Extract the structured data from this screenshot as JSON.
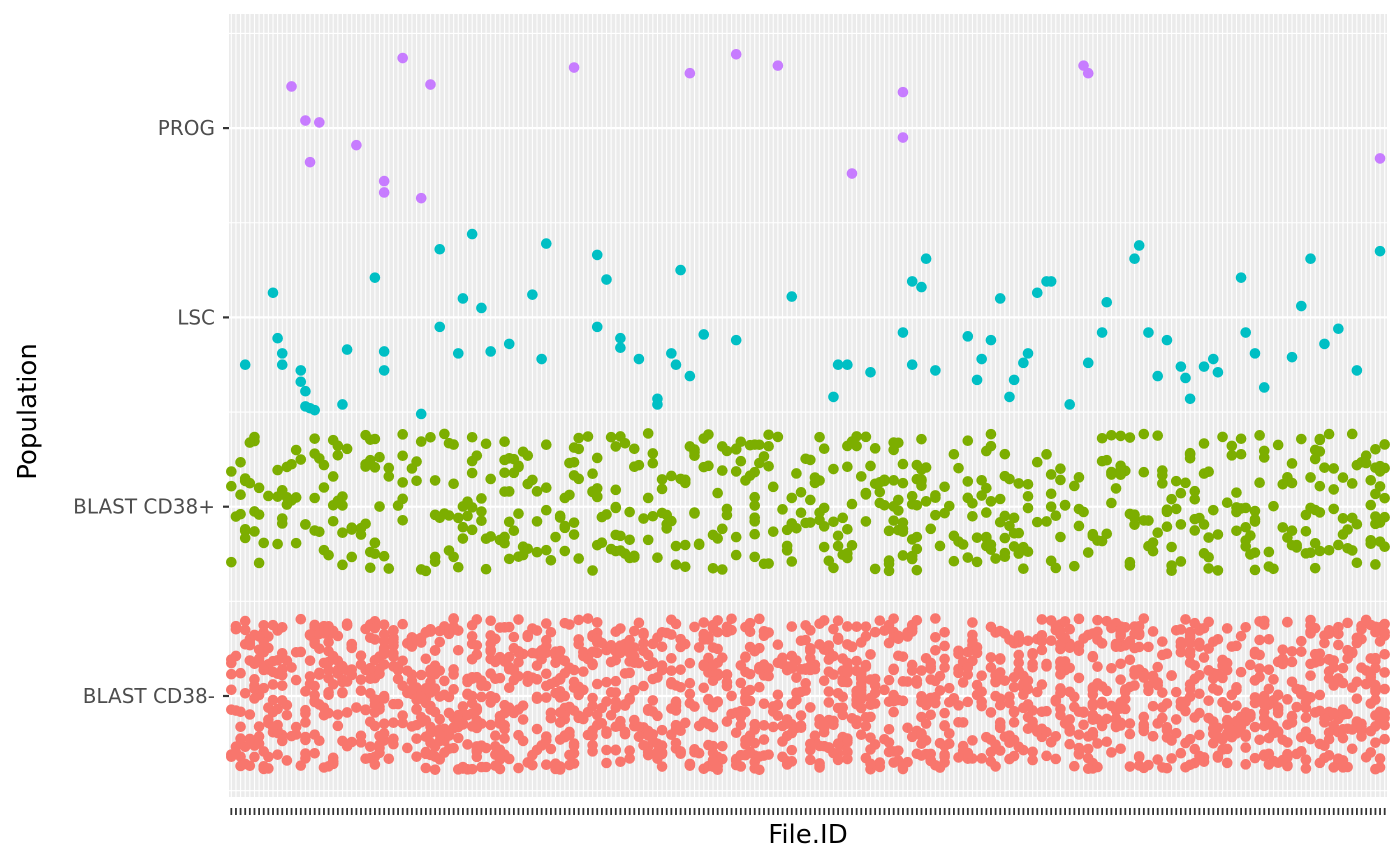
{
  "chart_data": {
    "type": "scatter",
    "title": "",
    "xlabel": "File.ID",
    "ylabel": "Population",
    "x_tick_labels_shown": false,
    "x_category_count": 250,
    "categories": [
      "BLAST CD38-",
      "BLAST CD38+",
      "LSC",
      "PROG"
    ],
    "jitter_height": 0.4,
    "grid": true,
    "legend": "none",
    "background": "#EBEBEB",
    "series": [
      {
        "name": "PROG",
        "color": "#C77CFF",
        "points": [
          {
            "x": 13,
            "y": 3.22
          },
          {
            "x": 16,
            "y": 3.04
          },
          {
            "x": 17,
            "y": 2.82
          },
          {
            "x": 19,
            "y": 3.03
          },
          {
            "x": 27,
            "y": 2.91
          },
          {
            "x": 33,
            "y": 2.72
          },
          {
            "x": 33,
            "y": 2.66
          },
          {
            "x": 37,
            "y": 3.37
          },
          {
            "x": 41,
            "y": 2.63
          },
          {
            "x": 43,
            "y": 3.23
          },
          {
            "x": 74,
            "y": 3.32
          },
          {
            "x": 99,
            "y": 3.29
          },
          {
            "x": 109,
            "y": 3.39
          },
          {
            "x": 118,
            "y": 3.33
          },
          {
            "x": 134,
            "y": 2.76
          },
          {
            "x": 145,
            "y": 3.19
          },
          {
            "x": 145,
            "y": 2.95
          },
          {
            "x": 184,
            "y": 3.33
          },
          {
            "x": 185,
            "y": 3.29
          },
          {
            "x": 248,
            "y": 2.84
          }
        ]
      },
      {
        "name": "LSC",
        "color": "#00BFC4",
        "points": [
          {
            "x": 3,
            "y": 1.75
          },
          {
            "x": 9,
            "y": 2.13
          },
          {
            "x": 10,
            "y": 1.89
          },
          {
            "x": 11,
            "y": 1.81
          },
          {
            "x": 11,
            "y": 1.75
          },
          {
            "x": 15,
            "y": 1.66
          },
          {
            "x": 15,
            "y": 1.72
          },
          {
            "x": 16,
            "y": 1.61
          },
          {
            "x": 16,
            "y": 1.53
          },
          {
            "x": 17,
            "y": 1.52
          },
          {
            "x": 18,
            "y": 1.51
          },
          {
            "x": 24,
            "y": 1.54
          },
          {
            "x": 25,
            "y": 1.83
          },
          {
            "x": 31,
            "y": 2.21
          },
          {
            "x": 33,
            "y": 1.82
          },
          {
            "x": 33,
            "y": 1.72
          },
          {
            "x": 41,
            "y": 1.49
          },
          {
            "x": 45,
            "y": 2.36
          },
          {
            "x": 45,
            "y": 1.95
          },
          {
            "x": 49,
            "y": 1.81
          },
          {
            "x": 50,
            "y": 2.1
          },
          {
            "x": 52,
            "y": 2.44
          },
          {
            "x": 54,
            "y": 2.05
          },
          {
            "x": 56,
            "y": 1.82
          },
          {
            "x": 60,
            "y": 1.86
          },
          {
            "x": 65,
            "y": 2.12
          },
          {
            "x": 67,
            "y": 1.78
          },
          {
            "x": 68,
            "y": 2.39
          },
          {
            "x": 79,
            "y": 2.33
          },
          {
            "x": 79,
            "y": 1.95
          },
          {
            "x": 81,
            "y": 2.2
          },
          {
            "x": 84,
            "y": 1.89
          },
          {
            "x": 84,
            "y": 1.84
          },
          {
            "x": 88,
            "y": 1.78
          },
          {
            "x": 92,
            "y": 1.57
          },
          {
            "x": 92,
            "y": 1.54
          },
          {
            "x": 95,
            "y": 1.81
          },
          {
            "x": 96,
            "y": 1.75
          },
          {
            "x": 97,
            "y": 2.25
          },
          {
            "x": 99,
            "y": 1.69
          },
          {
            "x": 102,
            "y": 1.91
          },
          {
            "x": 109,
            "y": 1.88
          },
          {
            "x": 121,
            "y": 2.11
          },
          {
            "x": 130,
            "y": 1.58
          },
          {
            "x": 131,
            "y": 1.75
          },
          {
            "x": 133,
            "y": 1.75
          },
          {
            "x": 138,
            "y": 1.71
          },
          {
            "x": 145,
            "y": 1.92
          },
          {
            "x": 147,
            "y": 2.19
          },
          {
            "x": 147,
            "y": 1.75
          },
          {
            "x": 149,
            "y": 2.16
          },
          {
            "x": 150,
            "y": 2.31
          },
          {
            "x": 152,
            "y": 1.72
          },
          {
            "x": 159,
            "y": 1.9
          },
          {
            "x": 161,
            "y": 1.67
          },
          {
            "x": 162,
            "y": 1.78
          },
          {
            "x": 164,
            "y": 1.88
          },
          {
            "x": 166,
            "y": 2.1
          },
          {
            "x": 168,
            "y": 1.58
          },
          {
            "x": 169,
            "y": 1.67
          },
          {
            "x": 171,
            "y": 1.76
          },
          {
            "x": 172,
            "y": 1.81
          },
          {
            "x": 174,
            "y": 2.13
          },
          {
            "x": 176,
            "y": 2.19
          },
          {
            "x": 177,
            "y": 2.19
          },
          {
            "x": 181,
            "y": 1.54
          },
          {
            "x": 185,
            "y": 1.76
          },
          {
            "x": 188,
            "y": 1.92
          },
          {
            "x": 189,
            "y": 2.08
          },
          {
            "x": 195,
            "y": 2.31
          },
          {
            "x": 196,
            "y": 2.38
          },
          {
            "x": 198,
            "y": 1.92
          },
          {
            "x": 200,
            "y": 1.69
          },
          {
            "x": 202,
            "y": 1.88
          },
          {
            "x": 205,
            "y": 1.74
          },
          {
            "x": 206,
            "y": 1.68
          },
          {
            "x": 207,
            "y": 1.57
          },
          {
            "x": 210,
            "y": 1.74
          },
          {
            "x": 212,
            "y": 1.78
          },
          {
            "x": 213,
            "y": 1.71
          },
          {
            "x": 218,
            "y": 2.21
          },
          {
            "x": 219,
            "y": 1.92
          },
          {
            "x": 221,
            "y": 1.81
          },
          {
            "x": 223,
            "y": 1.63
          },
          {
            "x": 229,
            "y": 1.79
          },
          {
            "x": 231,
            "y": 2.06
          },
          {
            "x": 233,
            "y": 2.31
          },
          {
            "x": 236,
            "y": 1.86
          },
          {
            "x": 239,
            "y": 1.94
          },
          {
            "x": 243,
            "y": 1.72
          },
          {
            "x": 248,
            "y": 2.35
          }
        ]
      },
      {
        "name": "BLAST CD38+",
        "color": "#7CAE00",
        "points_generation": {
          "count": 640,
          "columns": 250,
          "y_min": 0.66,
          "y_max": 1.39,
          "note": "jittered cloud around BLAST CD38+"
        }
      },
      {
        "name": "BLAST CD38-",
        "color": "#F8766D",
        "points_generation": {
          "count": 1750,
          "columns": 250,
          "y_min": -0.39,
          "y_max": 0.41,
          "note": "jittered cloud around BLAST CD38-"
        }
      }
    ]
  }
}
